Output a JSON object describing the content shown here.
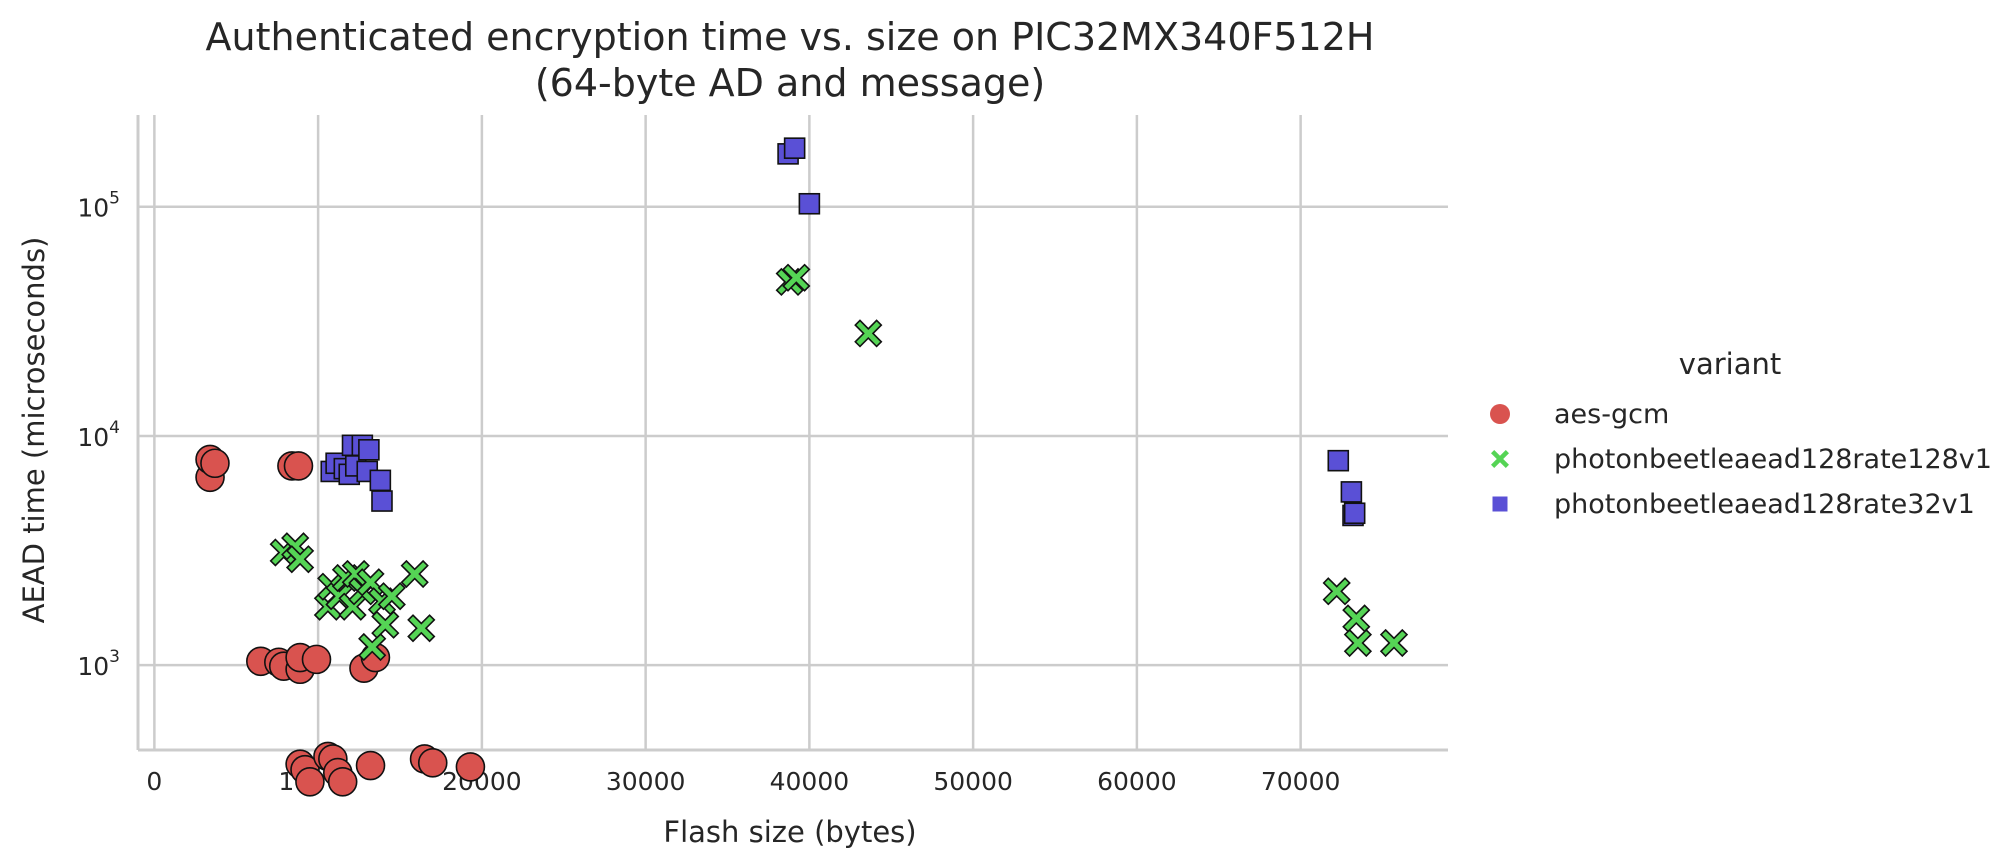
{
  "chart_data": {
    "type": "scatter",
    "title": "Authenticated encryption time vs. size on PIC32MX340F512H",
    "subtitle": "(64-byte AD and message)",
    "xlabel": "Flash size (bytes)",
    "ylabel": "AEAD time (microseconds)",
    "xlim": [
      -1000,
      79000
    ],
    "ylim_log10": [
      2.63,
      5.4
    ],
    "y_scale": "log",
    "x_ticks": [
      0,
      10000,
      20000,
      30000,
      40000,
      50000,
      60000,
      70000
    ],
    "x_tick_labels": [
      "0",
      "10000",
      "20000",
      "30000",
      "40000",
      "50000",
      "60000",
      "70000"
    ],
    "y_ticks": [
      {
        "value": 1000,
        "base": "10",
        "exp": "3"
      },
      {
        "value": 10000,
        "base": "10",
        "exp": "4"
      },
      {
        "value": 100000,
        "base": "10",
        "exp": "5"
      }
    ],
    "grid": true,
    "legend": {
      "title": "variant",
      "position": "right"
    },
    "series": [
      {
        "name": "aes-gcm",
        "color": "#d9534f",
        "marker": "circle",
        "points": [
          [
            3400,
            6600
          ],
          [
            3400,
            7900
          ],
          [
            3700,
            7600
          ],
          [
            8400,
            7400
          ],
          [
            8800,
            7400
          ],
          [
            6500,
            1040
          ],
          [
            7600,
            1030
          ],
          [
            7900,
            990
          ],
          [
            8900,
            960
          ],
          [
            8900,
            1080
          ],
          [
            9900,
            1060
          ],
          [
            12800,
            970
          ],
          [
            13500,
            1080
          ],
          [
            8900,
            370
          ],
          [
            9200,
            350
          ],
          [
            9500,
            310
          ],
          [
            10600,
            400
          ],
          [
            10900,
            390
          ],
          [
            11200,
            340
          ],
          [
            11500,
            310
          ],
          [
            13200,
            365
          ],
          [
            16500,
            390
          ],
          [
            17000,
            375
          ],
          [
            19300,
            360
          ]
        ]
      },
      {
        "name": "photonbeetleaead128rate128v1",
        "color": "#55d455",
        "marker": "x",
        "points": [
          [
            7900,
            3100
          ],
          [
            8600,
            3300
          ],
          [
            8900,
            2900
          ],
          [
            10600,
            1800
          ],
          [
            10800,
            2200
          ],
          [
            11300,
            2000
          ],
          [
            11700,
            2400
          ],
          [
            12100,
            1800
          ],
          [
            12300,
            2500
          ],
          [
            12700,
            2100
          ],
          [
            13200,
            2300
          ],
          [
            13300,
            1200
          ],
          [
            13900,
            1900
          ],
          [
            14100,
            1500
          ],
          [
            14500,
            2000
          ],
          [
            15900,
            2500
          ],
          [
            16300,
            1450
          ],
          [
            38800,
            47000
          ],
          [
            39200,
            49000
          ],
          [
            43600,
            28000
          ],
          [
            72200,
            2100
          ],
          [
            73400,
            1600
          ],
          [
            73500,
            1250
          ],
          [
            75700,
            1250
          ]
        ]
      },
      {
        "name": "photonbeetleaead128rate32v1",
        "color": "#5a50d6",
        "marker": "square",
        "points": [
          [
            10800,
            7000
          ],
          [
            11100,
            7600
          ],
          [
            11600,
            7200
          ],
          [
            11900,
            6800
          ],
          [
            12100,
            9100
          ],
          [
            12300,
            7400
          ],
          [
            12700,
            9100
          ],
          [
            13100,
            8700
          ],
          [
            13000,
            7000
          ],
          [
            13800,
            6400
          ],
          [
            13900,
            5200
          ],
          [
            38700,
            170000
          ],
          [
            39100,
            180000
          ],
          [
            40000,
            103000
          ],
          [
            72300,
            7800
          ],
          [
            73100,
            5700
          ],
          [
            73200,
            4500
          ],
          [
            73300,
            4600
          ]
        ]
      }
    ]
  }
}
